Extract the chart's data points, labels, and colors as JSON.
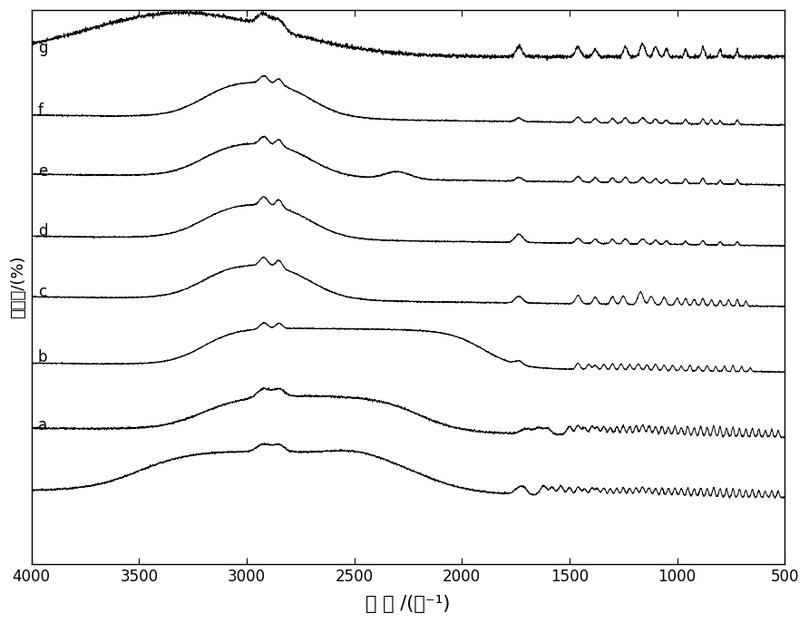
{
  "xlabel": "波 长 /(㏘⁻¹)",
  "ylabel": "透光率/(%)",
  "xlim": [
    4000,
    500
  ],
  "xticks": [
    4000,
    3500,
    3000,
    2500,
    2000,
    1500,
    1000,
    500
  ],
  "labels": [
    "g",
    "f",
    "e",
    "d",
    "c",
    "b",
    "a"
  ],
  "line_color": "#000000",
  "noise_scale": 0.003,
  "linewidth": 0.7
}
